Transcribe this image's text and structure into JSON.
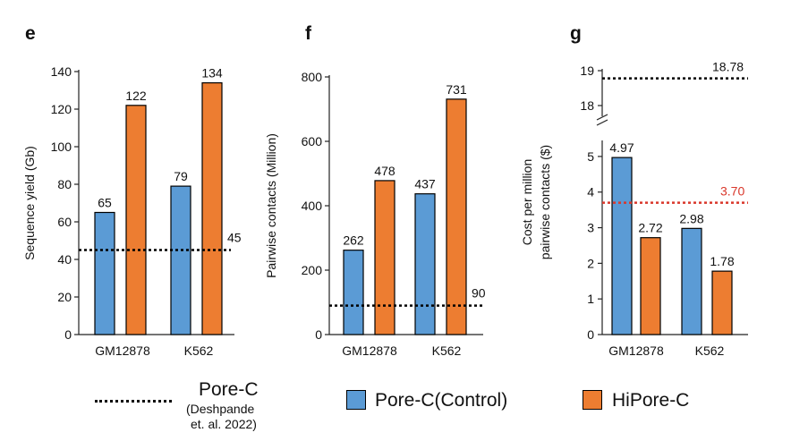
{
  "colors": {
    "control": "#5b9bd5",
    "hipore": "#ed7d31",
    "reference_line": "#000000",
    "hipore_cost_line": "#d9372b"
  },
  "legend": {
    "reference_label": "Pore-C",
    "reference_note_line1": "(Deshpande",
    "reference_note_line2": "et. al. 2022)",
    "series_control": "Pore-C(Control)",
    "series_hipore": "HiPore-C"
  },
  "chart_data": [
    {
      "panel": "e",
      "type": "bar",
      "categories": [
        "GM12878",
        "K562"
      ],
      "series": [
        {
          "name": "Pore-C(Control)",
          "values": [
            65,
            79
          ]
        },
        {
          "name": "HiPore-C",
          "values": [
            122,
            134
          ]
        }
      ],
      "ylabel": "Sequence yield (Gb)",
      "ylim": [
        0,
        140
      ],
      "yticks": [
        0,
        20,
        40,
        60,
        80,
        100,
        120,
        140
      ],
      "reference_line": {
        "value": 45,
        "label": "45"
      }
    },
    {
      "panel": "f",
      "type": "bar",
      "categories": [
        "GM12878",
        "K562"
      ],
      "series": [
        {
          "name": "Pore-C(Control)",
          "values": [
            262,
            437
          ]
        },
        {
          "name": "HiPore-C",
          "values": [
            478,
            731
          ]
        }
      ],
      "ylabel": "Pairwise contacts (Million)",
      "ylim": [
        0,
        800
      ],
      "yticks": [
        0,
        200,
        400,
        600,
        800
      ],
      "reference_line": {
        "value": 90,
        "label": "90"
      }
    },
    {
      "panel": "g",
      "type": "bar",
      "categories": [
        "GM12878",
        "K562"
      ],
      "series": [
        {
          "name": "Pore-C(Control)",
          "values": [
            4.97,
            2.98
          ]
        },
        {
          "name": "HiPore-C",
          "values": [
            2.72,
            1.78
          ]
        }
      ],
      "ylabel_line1": "Cost per million",
      "ylabel_line2": "pairwise contacts ($)",
      "ylim_lower": [
        0,
        5.5
      ],
      "ylim_upper": [
        18,
        19
      ],
      "yticks_lower": [
        0,
        1,
        2,
        3,
        4,
        5
      ],
      "yticks_upper": [
        18,
        19
      ],
      "axis_break": true,
      "reference_lines": [
        {
          "value": 18.78,
          "label": "18.78"
        },
        {
          "value": 3.7,
          "label": "3.70"
        }
      ]
    }
  ]
}
